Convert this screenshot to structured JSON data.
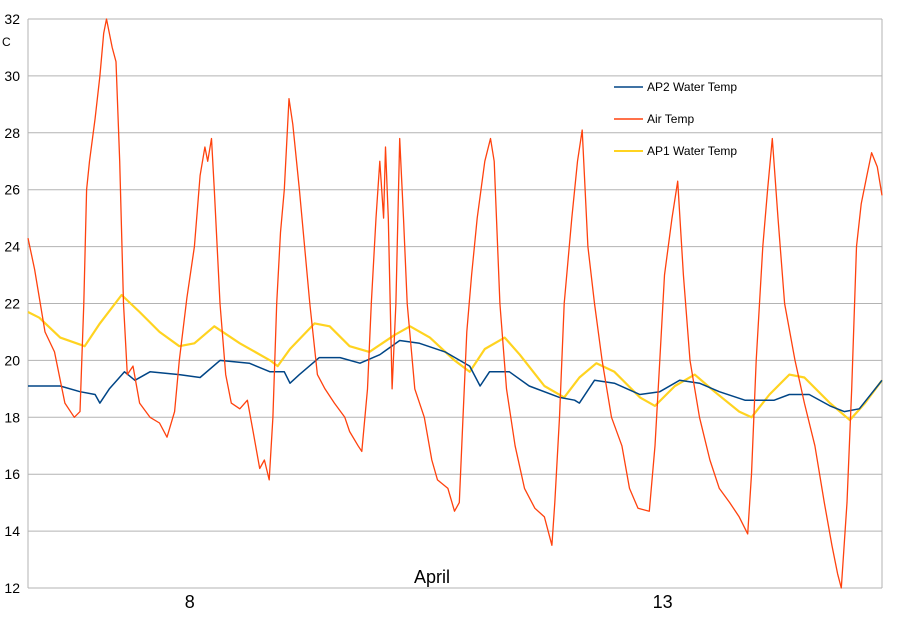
{
  "chart_data": {
    "type": "line",
    "title": "",
    "xlabel": "April",
    "ylabel": "C",
    "xlim": [
      6.29,
      15.32
    ],
    "ylim": [
      12,
      32
    ],
    "yticks": [
      12,
      14,
      16,
      18,
      20,
      22,
      24,
      26,
      28,
      30,
      32
    ],
    "xticks": [
      {
        "value": 8,
        "label": "8"
      },
      {
        "value": 13,
        "label": "13"
      }
    ],
    "grid": "horizontal",
    "legend_position": "top-right",
    "series": [
      {
        "name": "AP2 Water Temp",
        "color": "#004586",
        "points": [
          [
            6.29,
            19.1
          ],
          [
            6.63,
            19.1
          ],
          [
            6.84,
            18.9
          ],
          [
            7.0,
            18.8
          ],
          [
            7.05,
            18.5
          ],
          [
            7.15,
            19.0
          ],
          [
            7.31,
            19.6
          ],
          [
            7.42,
            19.3
          ],
          [
            7.58,
            19.6
          ],
          [
            7.89,
            19.5
          ],
          [
            8.11,
            19.4
          ],
          [
            8.32,
            20.0
          ],
          [
            8.63,
            19.9
          ],
          [
            8.85,
            19.6
          ],
          [
            9.0,
            19.6
          ],
          [
            9.06,
            19.2
          ],
          [
            9.16,
            19.5
          ],
          [
            9.37,
            20.1
          ],
          [
            9.59,
            20.1
          ],
          [
            9.8,
            19.9
          ],
          [
            10.01,
            20.2
          ],
          [
            10.22,
            20.7
          ],
          [
            10.43,
            20.6
          ],
          [
            10.7,
            20.3
          ],
          [
            10.96,
            19.8
          ],
          [
            11.07,
            19.1
          ],
          [
            11.17,
            19.6
          ],
          [
            11.38,
            19.6
          ],
          [
            11.59,
            19.1
          ],
          [
            11.91,
            18.7
          ],
          [
            12.07,
            18.6
          ],
          [
            12.12,
            18.5
          ],
          [
            12.28,
            19.3
          ],
          [
            12.49,
            19.2
          ],
          [
            12.76,
            18.8
          ],
          [
            12.97,
            18.9
          ],
          [
            13.18,
            19.3
          ],
          [
            13.39,
            19.2
          ],
          [
            13.6,
            18.9
          ],
          [
            13.87,
            18.6
          ],
          [
            14.18,
            18.6
          ],
          [
            14.34,
            18.8
          ],
          [
            14.55,
            18.8
          ],
          [
            14.77,
            18.4
          ],
          [
            14.92,
            18.2
          ],
          [
            15.08,
            18.3
          ],
          [
            15.32,
            19.3
          ]
        ]
      },
      {
        "name": "Air Temp",
        "color": "#ff420e",
        "points": [
          [
            6.29,
            24.3
          ],
          [
            6.36,
            23.2
          ],
          [
            6.47,
            21.0
          ],
          [
            6.57,
            20.3
          ],
          [
            6.65,
            19.0
          ],
          [
            6.68,
            18.5
          ],
          [
            6.78,
            18.0
          ],
          [
            6.84,
            18.2
          ],
          [
            6.88,
            22.0
          ],
          [
            6.91,
            26.0
          ],
          [
            6.94,
            27.0
          ],
          [
            7.0,
            28.5
          ],
          [
            7.05,
            30.0
          ],
          [
            7.09,
            31.5
          ],
          [
            7.12,
            32.0
          ],
          [
            7.18,
            31.0
          ],
          [
            7.22,
            30.5
          ],
          [
            7.26,
            27.0
          ],
          [
            7.3,
            22.0
          ],
          [
            7.34,
            19.5
          ],
          [
            7.4,
            19.8
          ],
          [
            7.47,
            18.5
          ],
          [
            7.58,
            18.0
          ],
          [
            7.68,
            17.8
          ],
          [
            7.76,
            17.3
          ],
          [
            7.84,
            18.2
          ],
          [
            7.89,
            20.0
          ],
          [
            7.97,
            22.2
          ],
          [
            8.05,
            24.0
          ],
          [
            8.11,
            26.5
          ],
          [
            8.16,
            27.5
          ],
          [
            8.19,
            27.0
          ],
          [
            8.23,
            27.8
          ],
          [
            8.26,
            26.0
          ],
          [
            8.32,
            22.0
          ],
          [
            8.38,
            19.5
          ],
          [
            8.44,
            18.5
          ],
          [
            8.53,
            18.3
          ],
          [
            8.61,
            18.6
          ],
          [
            8.67,
            17.5
          ],
          [
            8.74,
            16.2
          ],
          [
            8.79,
            16.5
          ],
          [
            8.84,
            15.8
          ],
          [
            8.88,
            18.0
          ],
          [
            8.92,
            22.0
          ],
          [
            8.96,
            24.5
          ],
          [
            9.0,
            26.0
          ],
          [
            9.05,
            29.2
          ],
          [
            9.09,
            28.3
          ],
          [
            9.16,
            26.0
          ],
          [
            9.27,
            22.0
          ],
          [
            9.35,
            19.5
          ],
          [
            9.43,
            19.0
          ],
          [
            9.53,
            18.5
          ],
          [
            9.64,
            18.0
          ],
          [
            9.69,
            17.5
          ],
          [
            9.78,
            17.0
          ],
          [
            9.82,
            16.8
          ],
          [
            9.88,
            19.0
          ],
          [
            9.92,
            22.0
          ],
          [
            9.97,
            25.0
          ],
          [
            10.01,
            27.0
          ],
          [
            10.05,
            25.0
          ],
          [
            10.07,
            27.5
          ],
          [
            10.1,
            25.0
          ],
          [
            10.14,
            19.0
          ],
          [
            10.18,
            22.0
          ],
          [
            10.22,
            27.8
          ],
          [
            10.26,
            25.0
          ],
          [
            10.3,
            22.0
          ],
          [
            10.38,
            19.0
          ],
          [
            10.48,
            18.0
          ],
          [
            10.56,
            16.5
          ],
          [
            10.62,
            15.8
          ],
          [
            10.73,
            15.5
          ],
          [
            10.8,
            14.7
          ],
          [
            10.85,
            15.0
          ],
          [
            10.89,
            18.0
          ],
          [
            10.93,
            21.0
          ],
          [
            10.98,
            23.0
          ],
          [
            11.04,
            25.0
          ],
          [
            11.12,
            27.0
          ],
          [
            11.18,
            27.8
          ],
          [
            11.22,
            27.0
          ],
          [
            11.28,
            22.0
          ],
          [
            11.35,
            19.0
          ],
          [
            11.44,
            17.0
          ],
          [
            11.54,
            15.5
          ],
          [
            11.65,
            14.8
          ],
          [
            11.75,
            14.5
          ],
          [
            11.83,
            13.5
          ],
          [
            11.86,
            15.0
          ],
          [
            11.91,
            18.0
          ],
          [
            11.96,
            22.0
          ],
          [
            12.04,
            25.0
          ],
          [
            12.1,
            27.0
          ],
          [
            12.15,
            28.1
          ],
          [
            12.21,
            24.0
          ],
          [
            12.28,
            22.0
          ],
          [
            12.36,
            20.0
          ],
          [
            12.46,
            18.0
          ],
          [
            12.57,
            17.0
          ],
          [
            12.65,
            15.5
          ],
          [
            12.74,
            14.8
          ],
          [
            12.86,
            14.7
          ],
          [
            12.92,
            17.0
          ],
          [
            12.97,
            20.0
          ],
          [
            13.02,
            23.0
          ],
          [
            13.1,
            25.0
          ],
          [
            13.16,
            26.3
          ],
          [
            13.22,
            23.0
          ],
          [
            13.29,
            20.0
          ],
          [
            13.39,
            18.0
          ],
          [
            13.5,
            16.5
          ],
          [
            13.6,
            15.5
          ],
          [
            13.71,
            15.0
          ],
          [
            13.81,
            14.5
          ],
          [
            13.9,
            13.9
          ],
          [
            13.94,
            16.0
          ],
          [
            13.99,
            20.0
          ],
          [
            14.06,
            24.0
          ],
          [
            14.11,
            26.0
          ],
          [
            14.16,
            27.8
          ],
          [
            14.22,
            25.0
          ],
          [
            14.29,
            22.0
          ],
          [
            14.4,
            20.0
          ],
          [
            14.5,
            18.5
          ],
          [
            14.61,
            17.0
          ],
          [
            14.71,
            15.0
          ],
          [
            14.79,
            13.5
          ],
          [
            14.85,
            12.5
          ],
          [
            14.89,
            12.0
          ],
          [
            14.95,
            15.0
          ],
          [
            15.0,
            19.0
          ],
          [
            15.05,
            24.0
          ],
          [
            15.1,
            25.5
          ],
          [
            15.16,
            26.5
          ],
          [
            15.21,
            27.3
          ],
          [
            15.27,
            26.8
          ],
          [
            15.32,
            25.8
          ]
        ]
      },
      {
        "name": "AP1 Water Temp",
        "color": "#ffd320",
        "points": [
          [
            6.29,
            21.7
          ],
          [
            6.41,
            21.5
          ],
          [
            6.63,
            20.8
          ],
          [
            6.89,
            20.5
          ],
          [
            7.05,
            21.3
          ],
          [
            7.28,
            22.3
          ],
          [
            7.47,
            21.7
          ],
          [
            7.68,
            21.0
          ],
          [
            7.89,
            20.5
          ],
          [
            8.05,
            20.6
          ],
          [
            8.26,
            21.2
          ],
          [
            8.53,
            20.6
          ],
          [
            8.85,
            20.0
          ],
          [
            8.93,
            19.8
          ],
          [
            9.06,
            20.4
          ],
          [
            9.32,
            21.3
          ],
          [
            9.48,
            21.2
          ],
          [
            9.69,
            20.5
          ],
          [
            9.9,
            20.3
          ],
          [
            10.17,
            20.9
          ],
          [
            10.33,
            21.2
          ],
          [
            10.54,
            20.8
          ],
          [
            10.8,
            20.0
          ],
          [
            10.96,
            19.6
          ],
          [
            11.12,
            20.4
          ],
          [
            11.33,
            20.8
          ],
          [
            11.49,
            20.2
          ],
          [
            11.75,
            19.1
          ],
          [
            11.96,
            18.7
          ],
          [
            12.12,
            19.4
          ],
          [
            12.3,
            19.9
          ],
          [
            12.49,
            19.6
          ],
          [
            12.76,
            18.7
          ],
          [
            12.92,
            18.4
          ],
          [
            13.13,
            19.1
          ],
          [
            13.34,
            19.5
          ],
          [
            13.55,
            18.9
          ],
          [
            13.81,
            18.2
          ],
          [
            13.94,
            18.0
          ],
          [
            14.13,
            18.8
          ],
          [
            14.34,
            19.5
          ],
          [
            14.5,
            19.4
          ],
          [
            14.77,
            18.5
          ],
          [
            14.98,
            17.9
          ],
          [
            15.14,
            18.5
          ],
          [
            15.32,
            19.3
          ]
        ]
      }
    ]
  }
}
